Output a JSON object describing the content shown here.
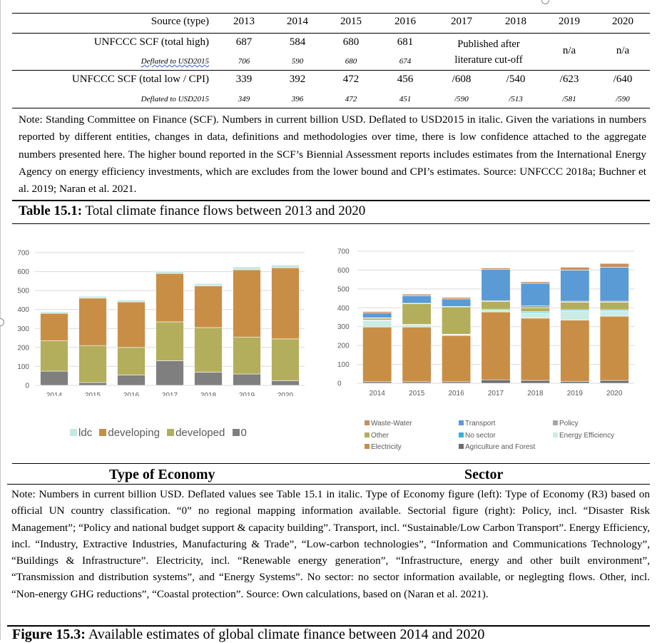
{
  "table": {
    "header": [
      "Source (type)",
      "2013",
      "2014",
      "2015",
      "2016",
      "2017",
      "2018",
      "2019",
      "2020"
    ],
    "row_high": {
      "label": "UNFCCC SCF (total high)",
      "values": [
        "687",
        "584",
        "680",
        "681"
      ],
      "published_note": "Published after literature cut-off",
      "published_line1": "Published after",
      "published_line2": "literature cut-off",
      "na_2019": "n/a",
      "na_2020": "n/a"
    },
    "row_high_deflated": {
      "label": "Deflated to USD2015",
      "values": [
        "706",
        "590",
        "680",
        "674"
      ]
    },
    "row_low": {
      "label": "UNFCCC SCF (total low / CPI)",
      "values": [
        "339",
        "392",
        "472",
        "456",
        "/608",
        "/540",
        "/623",
        "/640"
      ]
    },
    "row_low_deflated": {
      "label": "Deflated to USD2015",
      "values": [
        "349",
        "396",
        "472",
        "451",
        "/590",
        "/513",
        "/581",
        "/590"
      ]
    }
  },
  "note1": "Note: Standing Committee on Finance (SCF). Numbers in current billion USD. Deflated to USD2015 in italic. Given the variations in numbers reported by different entities, changes in data, definitions and methodologies over time, there is low confidence attached to the aggregate numbers presented here. The higher bound reported in the SCF’s Biennial Assessment reports includes estimates from the International Energy Agency on energy efficiency investments, which are excludes from the lower bound and CPI’s estimates. Source: UNFCCC 2018a; Buchner et al. 2019; Naran et al. 2021.",
  "table_caption": {
    "label": "Table 15.1:",
    "text": " Total climate finance flows between 2013 and 2020"
  },
  "chart_data": [
    {
      "type": "bar",
      "stacked": true,
      "categories": [
        "2014",
        "2015",
        "2016",
        "2017",
        "2018",
        "2019",
        "2020"
      ],
      "ylim": [
        0,
        700
      ],
      "yticks": [
        "0",
        "100",
        "200",
        "300",
        "400",
        "500",
        "600",
        "700"
      ],
      "series": [
        {
          "name": "0",
          "color": "#7f7f7f",
          "values": [
            75,
            15,
            55,
            130,
            70,
            60,
            25
          ]
        },
        {
          "name": "developed",
          "color": "#b3ae5b",
          "values": [
            160,
            195,
            145,
            205,
            235,
            195,
            220
          ]
        },
        {
          "name": "developing",
          "color": "#c98e45",
          "values": [
            145,
            250,
            240,
            255,
            220,
            355,
            375
          ]
        },
        {
          "name": "ldc",
          "color": "#c4e9e0",
          "values": [
            8,
            10,
            10,
            12,
            12,
            15,
            15
          ]
        }
      ],
      "legend_order": [
        "ldc",
        "developing",
        "developed",
        "0"
      ],
      "caption": "Type of Economy"
    },
    {
      "type": "bar",
      "stacked": true,
      "categories": [
        "2014",
        "2015",
        "2016",
        "2017",
        "2018",
        "2019",
        "2020"
      ],
      "ylim": [
        0,
        700
      ],
      "yticks": [
        "0",
        "100",
        "200",
        "300",
        "400",
        "500",
        "600",
        "700"
      ],
      "series": [
        {
          "name": "Agriculture and Forest",
          "color": "#6e6e6e",
          "values": [
            8,
            8,
            8,
            18,
            15,
            10,
            15
          ]
        },
        {
          "name": "Electricity",
          "color": "#c98e45",
          "values": [
            290,
            290,
            245,
            360,
            330,
            325,
            340
          ]
        },
        {
          "name": "Energy Efficiency",
          "color": "#c9ede6",
          "values": [
            35,
            12,
            5,
            10,
            30,
            50,
            30
          ]
        },
        {
          "name": "No sector",
          "color": "#2eb3e0",
          "values": [
            2,
            2,
            2,
            5,
            5,
            5,
            5
          ]
        },
        {
          "name": "Other",
          "color": "#b3ae5b",
          "values": [
            10,
            110,
            145,
            40,
            20,
            40,
            40
          ]
        },
        {
          "name": "Policy",
          "color": "#a6a6a6",
          "values": [
            2,
            2,
            2,
            5,
            10,
            5,
            5
          ]
        },
        {
          "name": "Transport",
          "color": "#5b9bd5",
          "values": [
            25,
            40,
            40,
            165,
            120,
            165,
            180
          ]
        },
        {
          "name": "Waste-Water",
          "color": "#c98e5e",
          "values": [
            8,
            8,
            8,
            8,
            8,
            15,
            20
          ]
        }
      ],
      "legend_rows": [
        [
          "Waste-Water",
          "Transport",
          "Policy"
        ],
        [
          "Other",
          "No sector",
          "Energy Efficiency"
        ],
        [
          "Electricity",
          "Agriculture and Forest"
        ]
      ],
      "caption": "Sector"
    }
  ],
  "note2": "Note: Numbers in current billion USD. Deflated values see Table 15.1 in italic. Type of Economy figure (left): Type of Economy (R3) based on official UN country classification. “0” no regional mapping information available. Sectorial figure (right): Policy, incl. “Disaster Risk Management”; “Policy and national budget support & capacity building”. Transport, incl. “Sustainable/Low Carbon Transport”. Energy Efficiency, incl. “Industry, Extractive Industries, Manufacturing & Trade”, “Low-carbon technologies”, “Information and Communications Technology”, “Buildings & Infrastructure”. Electricity, incl. “Renewable energy generation”, “Infrastructure, energy and other built environment”, “Transmission and distribution systems”, and “Energy Systems”. No sector: no sector information available, or neglegting flows. Other, incl. “Non-energy GHG reductions”, “Coastal protection”. Source: Own calculations, based on (Naran et al. 2021).",
  "figure_caption": {
    "label": "Figure 15.3:",
    "text": " Available estimates of global climate finance between 2014 and 2020"
  }
}
